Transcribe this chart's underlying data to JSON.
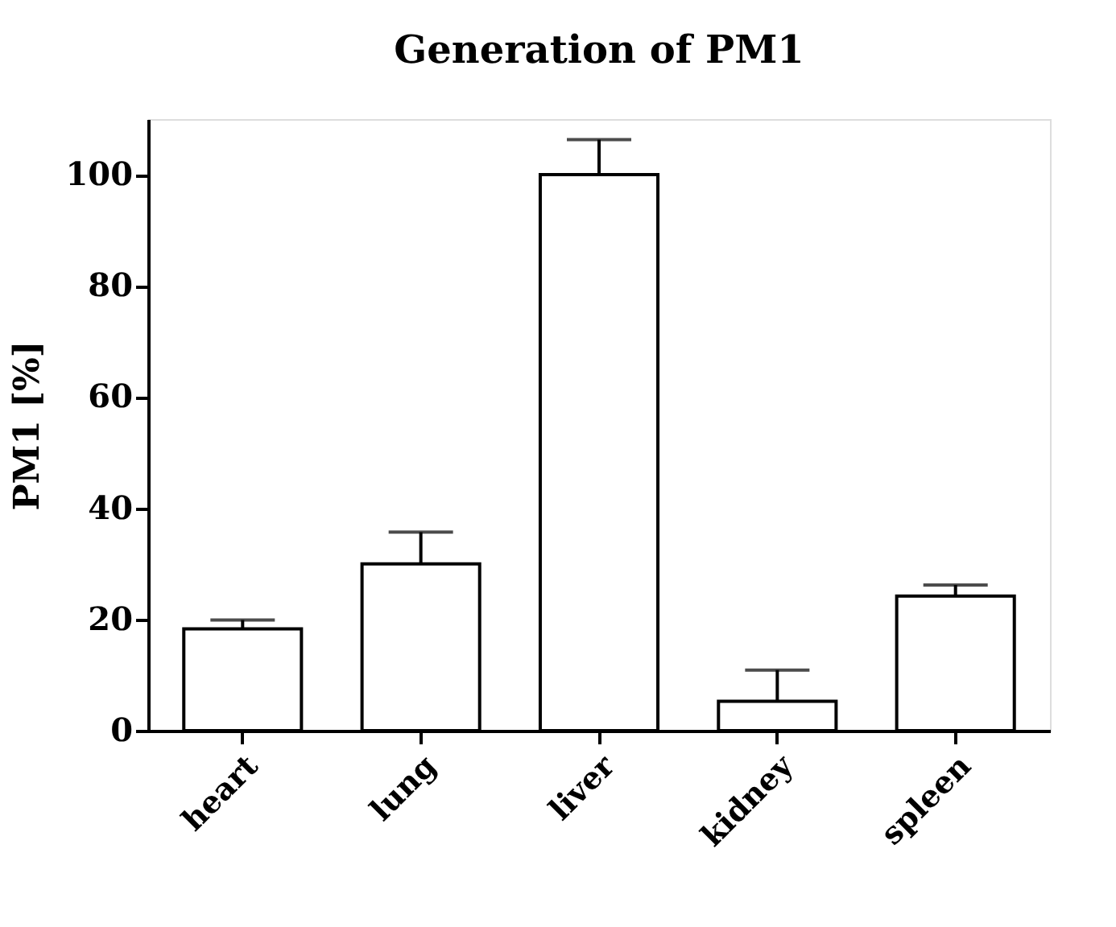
{
  "chart_data": {
    "type": "bar",
    "title": "Generation of PM1",
    "ylabel": "PM1 [%]",
    "categories": [
      "heart",
      "lung",
      "liver",
      "kidney",
      "spleen"
    ],
    "values": [
      18.3,
      30.0,
      100,
      5.3,
      24.2
    ],
    "errors": [
      1.6,
      5.7,
      6.3,
      5.6,
      2.0
    ],
    "color": "#ffffff",
    "ylim": [
      0,
      110
    ],
    "yticks": [
      0,
      20,
      40,
      60,
      80,
      100
    ],
    "grid": false
  }
}
